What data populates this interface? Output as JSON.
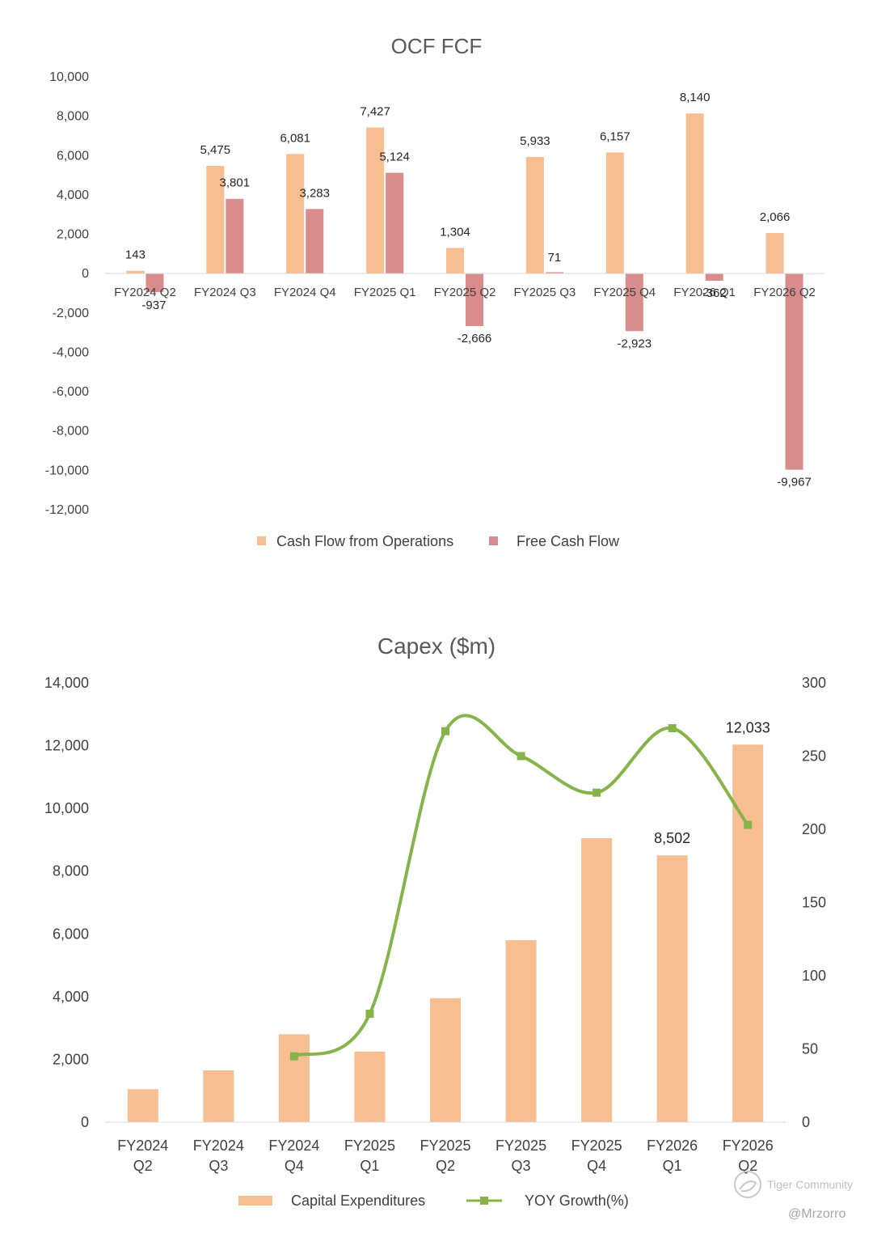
{
  "colors": {
    "ocf": "#F7BE92",
    "fcf": "#D98C8C",
    "capex": "#F7BE92",
    "growth": "#86B34A",
    "axis": "#D9D9D9"
  },
  "chart_data": [
    {
      "type": "bar",
      "title": "OCF FCF",
      "categories": [
        "FY2024 Q2",
        "FY2024 Q3",
        "FY2024 Q4",
        "FY2025 Q1",
        "FY2025 Q2",
        "FY2025 Q3",
        "FY2025 Q4",
        "FY2026 Q1",
        "FY2026 Q2"
      ],
      "series": [
        {
          "name": "Cash Flow from Operations",
          "values": [
            143,
            5475,
            6081,
            7427,
            1304,
            5933,
            6157,
            8140,
            2066
          ],
          "labels": [
            "143",
            "5,475",
            "6,081",
            "7,427",
            "1,304",
            "5,933",
            "6,157",
            "8,140",
            "2,066"
          ]
        },
        {
          "name": "Free Cash Flow",
          "values": [
            -937,
            3801,
            3283,
            5124,
            -2666,
            71,
            -2923,
            -362,
            -9967
          ],
          "labels": [
            "-937",
            "3,801",
            "3,283",
            "5,124",
            "-2,666",
            "71",
            "-2,923",
            "-362",
            "-9,967"
          ]
        }
      ],
      "ylim": [
        -12000,
        10000
      ],
      "yticks": [
        10000,
        8000,
        6000,
        4000,
        2000,
        0,
        -2000,
        -4000,
        -6000,
        -8000,
        -10000,
        -12000
      ],
      "ytick_labels": [
        "10,000",
        "8,000",
        "6,000",
        "4,000",
        "2,000",
        "0",
        "-2,000",
        "-4,000",
        "-6,000",
        "-8,000",
        "-10,000",
        "-12,000"
      ],
      "legend": "bottom"
    },
    {
      "type": "bar",
      "title": "Capex ($m)",
      "categories": [
        [
          "FY2024",
          "Q2"
        ],
        [
          "FY2024",
          "Q3"
        ],
        [
          "FY2024",
          "Q4"
        ],
        [
          "FY2025",
          "Q1"
        ],
        [
          "FY2025",
          "Q2"
        ],
        [
          "FY2025",
          "Q3"
        ],
        [
          "FY2025",
          "Q4"
        ],
        [
          "FY2026",
          "Q1"
        ],
        [
          "FY2026",
          "Q2"
        ]
      ],
      "series": [
        {
          "name": "Capital Expenditures",
          "axis": "left",
          "values": [
            1050,
            1650,
            2800,
            2250,
            3950,
            5800,
            9050,
            8502,
            12033
          ],
          "labels": [
            "",
            "",
            "",
            "",
            "",
            "",
            "",
            "8,502",
            "12,033"
          ]
        },
        {
          "name": "YOY Growth(%)",
          "axis": "right",
          "type": "line",
          "values": [
            null,
            null,
            45,
            74,
            267,
            250,
            225,
            269,
            203
          ]
        }
      ],
      "ylim": [
        0,
        14000
      ],
      "yticks": [
        14000,
        12000,
        10000,
        8000,
        6000,
        4000,
        2000,
        0
      ],
      "ytick_labels": [
        "14,000",
        "12,000",
        "10,000",
        "8,000",
        "6,000",
        "4,000",
        "2,000",
        "0"
      ],
      "y2lim": [
        0,
        300
      ],
      "y2ticks": [
        300,
        250,
        200,
        150,
        100,
        50,
        0
      ],
      "y2tick_labels": [
        "300",
        "250",
        "200",
        "150",
        "100",
        "50",
        "0"
      ],
      "legend": "bottom"
    }
  ],
  "watermark": {
    "brand": "Tiger Community",
    "handle": "@Mrzorro"
  }
}
